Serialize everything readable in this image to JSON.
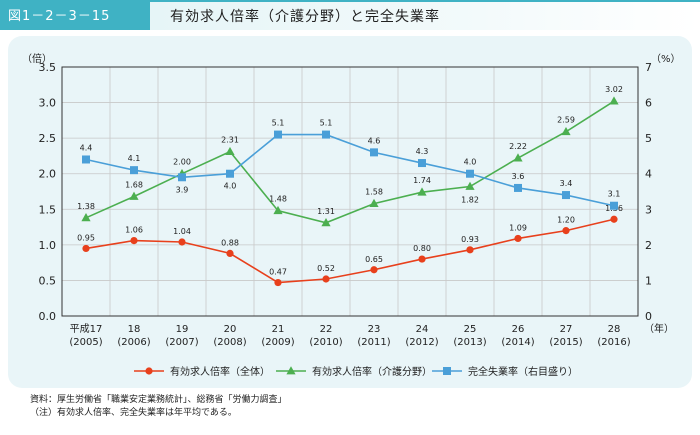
{
  "header": {
    "figure_no": "図1－2－3－15",
    "title": "有効求人倍率（介護分野）と完全失業率"
  },
  "chart_data": {
    "type": "line",
    "title": "有効求人倍率（介護分野）と完全失業率",
    "left_axis_unit": "（倍）",
    "right_axis_unit": "（%）",
    "x_unit": "（年）",
    "left_ylim": [
      0,
      3.5
    ],
    "left_ticks": [
      "0.0",
      "0.5",
      "1.0",
      "1.5",
      "2.0",
      "2.5",
      "3.0",
      "3.5"
    ],
    "right_ylim": [
      0,
      7
    ],
    "right_ticks": [
      "0",
      "1",
      "2",
      "3",
      "4",
      "5",
      "6",
      "7"
    ],
    "categories": [
      {
        "era": "平成17",
        "year": "(2005)"
      },
      {
        "era": "18",
        "year": "(2006)"
      },
      {
        "era": "19",
        "year": "(2007)"
      },
      {
        "era": "20",
        "year": "(2008)"
      },
      {
        "era": "21",
        "year": "(2009)"
      },
      {
        "era": "22",
        "year": "(2010)"
      },
      {
        "era": "23",
        "year": "(2011)"
      },
      {
        "era": "24",
        "year": "(2012)"
      },
      {
        "era": "25",
        "year": "(2013)"
      },
      {
        "era": "26",
        "year": "(2014)"
      },
      {
        "era": "27",
        "year": "(2015)"
      },
      {
        "era": "28",
        "year": "(2016)"
      }
    ],
    "grid": true,
    "legend_position": "bottom",
    "series": [
      {
        "name": "有効求人倍率（全体）",
        "axis": "left",
        "color": "#e8401c",
        "marker": "circle",
        "values": [
          0.95,
          1.06,
          1.04,
          0.88,
          0.47,
          0.52,
          0.65,
          0.8,
          0.93,
          1.09,
          1.2,
          1.36
        ],
        "labels": [
          "0.95",
          "1.06",
          "1.04",
          "0.88",
          "0.47",
          "0.52",
          "0.65",
          "0.80",
          "0.93",
          "1.09",
          "1.20",
          "1.36"
        ]
      },
      {
        "name": "有効求人倍率（介護分野）",
        "axis": "left",
        "color": "#4caf50",
        "marker": "triangle",
        "values": [
          1.38,
          1.68,
          2.0,
          2.31,
          1.48,
          1.31,
          1.58,
          1.74,
          1.82,
          2.22,
          2.59,
          3.02
        ],
        "labels": [
          "1.38",
          "1.68",
          "2.00",
          "2.31",
          "1.48",
          "1.31",
          "1.58",
          "1.74",
          "1.82",
          "2.22",
          "2.59",
          "3.02"
        ]
      },
      {
        "name": "完全失業率（右目盛り）",
        "axis": "right",
        "color": "#4a9fd8",
        "marker": "square",
        "values": [
          4.4,
          4.1,
          3.9,
          4.0,
          5.1,
          5.1,
          4.6,
          4.3,
          4.0,
          3.6,
          3.4,
          3.1
        ],
        "labels": [
          "4.4",
          "4.1",
          "3.9",
          "4.0",
          "5.1",
          "5.1",
          "4.6",
          "4.3",
          "4.0",
          "3.6",
          "3.4",
          "3.1"
        ]
      }
    ]
  },
  "notes": {
    "source": "資料：厚生労働省「職業安定業務統計」、総務省「労働力調査」",
    "note": "（注）有効求人倍率、完全失業率は年平均である。"
  }
}
